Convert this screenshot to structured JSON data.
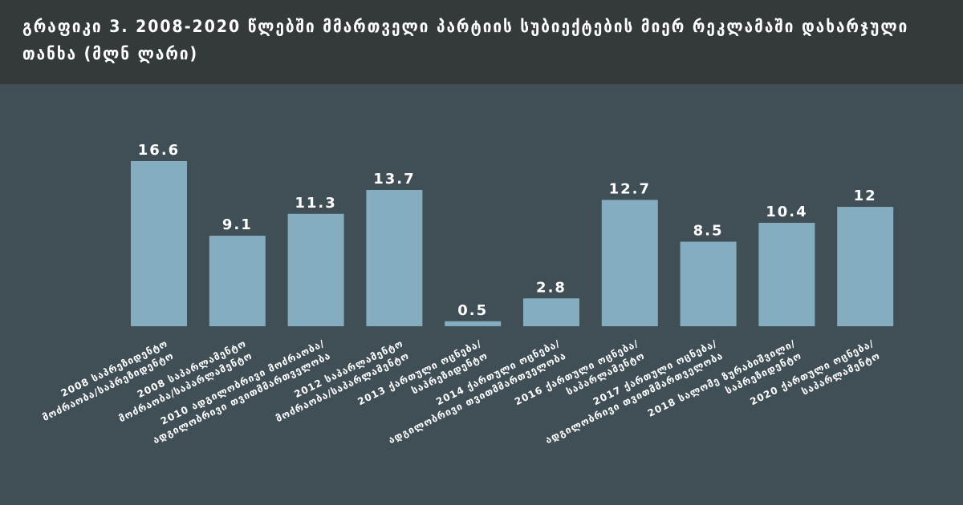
{
  "title": "გრაფიკი 3. 2008-2020 წლებში მმართველი პარტიის სუბიექტების მიერ რეკლამაში დახარჯული თანხა (მლნ ლარი)",
  "colors": {
    "header_bg": "#343a3c",
    "plot_bg": "#404f56",
    "bar": "#84aec0",
    "text": "#ffffff"
  },
  "chart_data": {
    "type": "bar",
    "title": "გრაფიკი 3. 2008-2020 წლებში მმართველი პარტიის სუბიექტების მიერ რეკლამაში დახარჯული თანხა (მლნ ლარი)",
    "xlabel": "",
    "ylabel": "",
    "ylim": [
      0,
      16.6
    ],
    "grid": false,
    "legend": "none",
    "categories": [
      [
        "2008 საპრეზიდენტო",
        "მოძრაობა/საპრეზიდენტო"
      ],
      [
        "2008 საპარლამენტო",
        "მოძრაობა/საპარლამენტო"
      ],
      [
        "2010 ადგილობრივი მოძრაობა/",
        "ადგილობრივი თვითმმართველობა"
      ],
      [
        "2012 საპარლამენტო",
        "მოძრაობა/საპარლამენტო"
      ],
      [
        "2013 ქართული ოცნება/",
        "საპრეზიდენტო"
      ],
      [
        "2014 ქართული ოცნება/",
        "ადგილობრივი თვითმმართველობა"
      ],
      [
        "2016 ქართული ოცნება/",
        "საპარლამენტო"
      ],
      [
        "2017 ქართული ოცნება/",
        "ადგილობრივი თვითმმართველობა"
      ],
      [
        "2018 სალომე ზურაბიშვილი/",
        "საპრეზიდენტო"
      ],
      [
        "2020 ქართული ოცნება/",
        "საპარლამენტო"
      ]
    ],
    "values": [
      16.6,
      9.1,
      11.3,
      13.7,
      0.5,
      2.8,
      12.7,
      8.5,
      10.4,
      12
    ],
    "value_labels": [
      "16.6",
      "9.1",
      "11.3",
      "13.7",
      "0.5",
      "2.8",
      "12.7",
      "8.5",
      "10.4",
      "12"
    ]
  }
}
